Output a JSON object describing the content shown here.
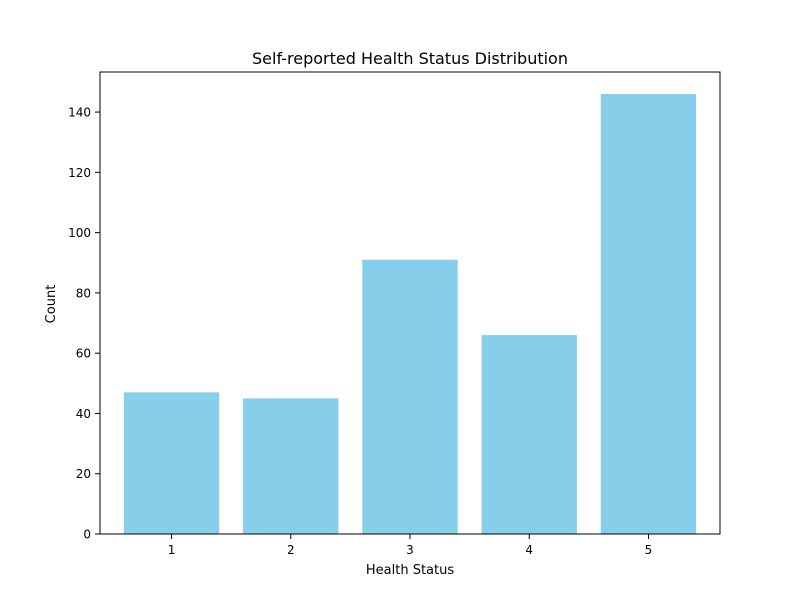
{
  "chart_data": {
    "type": "bar",
    "title": "Self-reported Health Status Distribution",
    "xlabel": "Health Status",
    "ylabel": "Count",
    "categories": [
      "1",
      "2",
      "3",
      "4",
      "5"
    ],
    "values": [
      47,
      45,
      91,
      66,
      146
    ],
    "ylim": [
      0,
      153.3
    ],
    "yticks": [
      0,
      20,
      40,
      60,
      80,
      100,
      120,
      140
    ],
    "bar_color": "#87ceeb",
    "grid": false,
    "legend": "none"
  }
}
